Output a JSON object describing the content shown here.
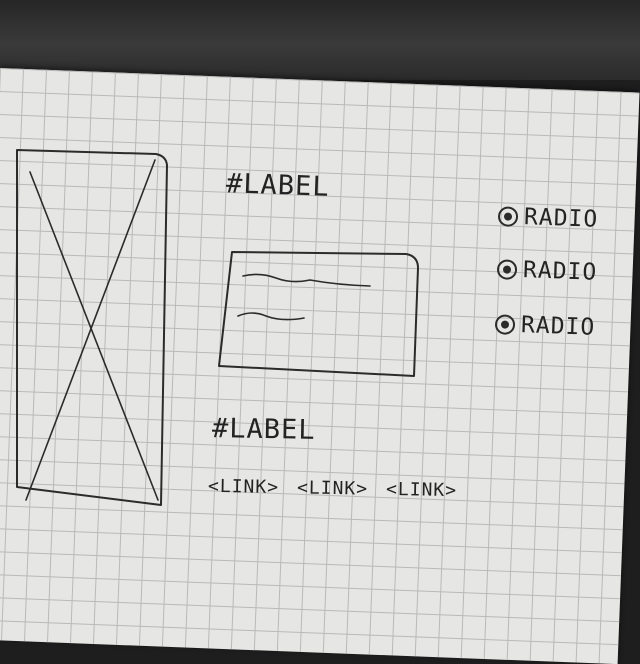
{
  "labels": {
    "label_top": "#LABEL",
    "label_bottom": "#LABEL"
  },
  "links": [
    "<LINK>",
    "<LINK>",
    "<LINK>"
  ],
  "radios": [
    "RADIO",
    "RADIO",
    "RADIO"
  ]
}
